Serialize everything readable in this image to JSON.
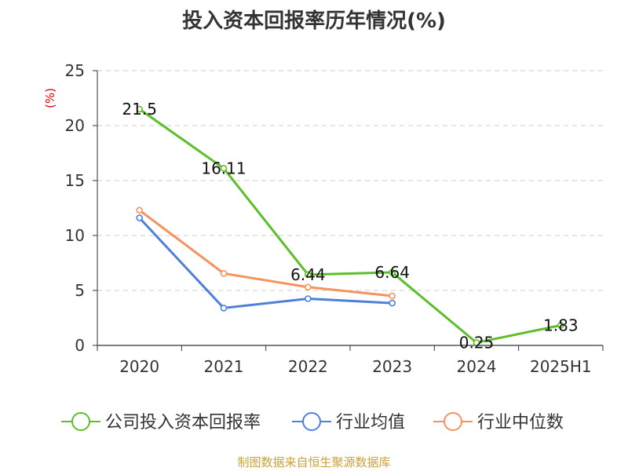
{
  "chart_data": {
    "type": "line",
    "title": "投入资本回报率历年情况(%)",
    "ylabel": "(%)",
    "categories": [
      "2020",
      "2021",
      "2022",
      "2023",
      "2024",
      "2025H1"
    ],
    "ylim": [
      0,
      25
    ],
    "yticks": [
      0,
      5,
      10,
      15,
      20,
      25
    ],
    "grid": true,
    "legend_position": "bottom",
    "series": [
      {
        "name": "公司投入资本回报率",
        "color": "#5cbf2a",
        "values": [
          21.5,
          16.11,
          6.44,
          6.64,
          0.25,
          1.83
        ],
        "labels": true
      },
      {
        "name": "行业均值",
        "color": "#4f80d9",
        "values": [
          11.6,
          3.4,
          4.25,
          3.85,
          null,
          null
        ],
        "labels": false
      },
      {
        "name": "行业中位数",
        "color": "#f5925e",
        "values": [
          12.3,
          6.55,
          5.3,
          4.5,
          null,
          null
        ],
        "labels": false
      }
    ]
  },
  "source": "制图数据来自恒生聚源数据库"
}
